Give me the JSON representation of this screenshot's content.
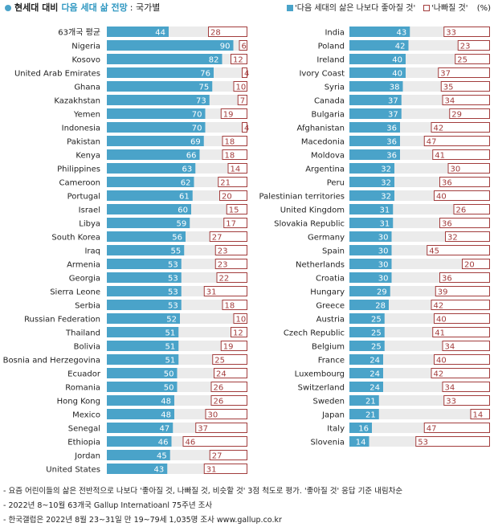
{
  "header": {
    "title_main": "현세대 대비",
    "title_highlight": "다음 세대 삶 전망",
    "title_sub": ": 국가별"
  },
  "legend": {
    "better_label": "'다음 세대의 삶은 나보다 좋아질 것'",
    "worse_label": "'나빠질 것'",
    "unit": "(%)"
  },
  "colors": {
    "accent": "#4aa3c9",
    "worse_border": "#a23c3c",
    "track": "#ebebeb",
    "title_highlight": "#2f97c1"
  },
  "notes": [
    "- 요즘 어린이들의 삶은 전반적으로 나보다 '좋아질 것, 나빠질 것, 비슷할 것' 3점 척도로 평가. '좋아질 것' 응답 기준 내림차순",
    "- 2022년 8~10월 63개국 Gallup Internatioanl 75주년 조사",
    "- 한국갤럽은 2022년 8월 23~31일 만 19~79세 1,035명 조사 www.gallup.co.kr"
  ],
  "chart_data": [
    {
      "type": "bar",
      "categories": [
        "63개국 평균",
        "Nigeria",
        "Kosovo",
        "United Arab Emirates",
        "Ghana",
        "Kazakhstan",
        "Yemen",
        "Indonesia",
        "Pakistan",
        "Kenya",
        "Philippines",
        "Cameroon",
        "Portugal",
        "Israel",
        "Libya",
        "South Korea",
        "Iraq",
        "Armenia",
        "Georgia",
        "Sierra Leone",
        "Serbia",
        "Russian Federation",
        "Thailand",
        "Bolivia",
        "Bosnia and Herzegovina",
        "Ecuador",
        "Romania",
        "Hong Kong",
        "Mexico",
        "Senegal",
        "Ethiopia",
        "Jordan",
        "United States"
      ],
      "series": [
        {
          "name": "'다음 세대의 삶은 나보다 좋아질 것'",
          "values": [
            44,
            90,
            82,
            76,
            75,
            73,
            70,
            70,
            69,
            66,
            63,
            62,
            61,
            60,
            59,
            56,
            55,
            53,
            53,
            53,
            53,
            52,
            51,
            51,
            51,
            50,
            50,
            48,
            48,
            47,
            46,
            45,
            43
          ]
        },
        {
          "name": "'나빠질 것'",
          "values": [
            28,
            6,
            12,
            4,
            10,
            7,
            19,
            4,
            18,
            18,
            14,
            21,
            20,
            15,
            17,
            27,
            23,
            23,
            22,
            31,
            18,
            10,
            12,
            19,
            25,
            24,
            26,
            26,
            30,
            37,
            46,
            27,
            31
          ]
        }
      ],
      "ylim": [
        0,
        100
      ]
    },
    {
      "type": "bar",
      "categories": [
        "India",
        "Poland",
        "Ireland",
        "Ivory Coast",
        "Syria",
        "Canada",
        "Bulgaria",
        "Afghanistan",
        "Macedonia",
        "Moldova",
        "Argentina",
        "Peru",
        "Palestinian territories",
        "United Kingdom",
        "Slovakia Republic",
        "Germany",
        "Spain",
        "Netherlands",
        "Croatia",
        "Hungary",
        "Greece",
        "Austria",
        "Czech Republic",
        "Belgium",
        "France",
        "Luxembourg",
        "Switzerland",
        "Sweden",
        "Japan",
        "Italy",
        "Slovenia"
      ],
      "series": [
        {
          "name": "'다음 세대의 삶은 나보다 좋아질 것'",
          "values": [
            43,
            42,
            40,
            40,
            38,
            37,
            37,
            36,
            36,
            36,
            32,
            32,
            32,
            31,
            31,
            30,
            30,
            30,
            30,
            29,
            28,
            25,
            25,
            25,
            24,
            24,
            24,
            21,
            21,
            16,
            14
          ]
        },
        {
          "name": "'나빠질 것'",
          "values": [
            33,
            23,
            25,
            37,
            35,
            34,
            29,
            42,
            47,
            41,
            30,
            36,
            40,
            26,
            36,
            32,
            45,
            20,
            36,
            39,
            42,
            40,
            41,
            34,
            40,
            42,
            34,
            33,
            14,
            47,
            53
          ]
        }
      ],
      "ylim": [
        0,
        100
      ]
    }
  ]
}
